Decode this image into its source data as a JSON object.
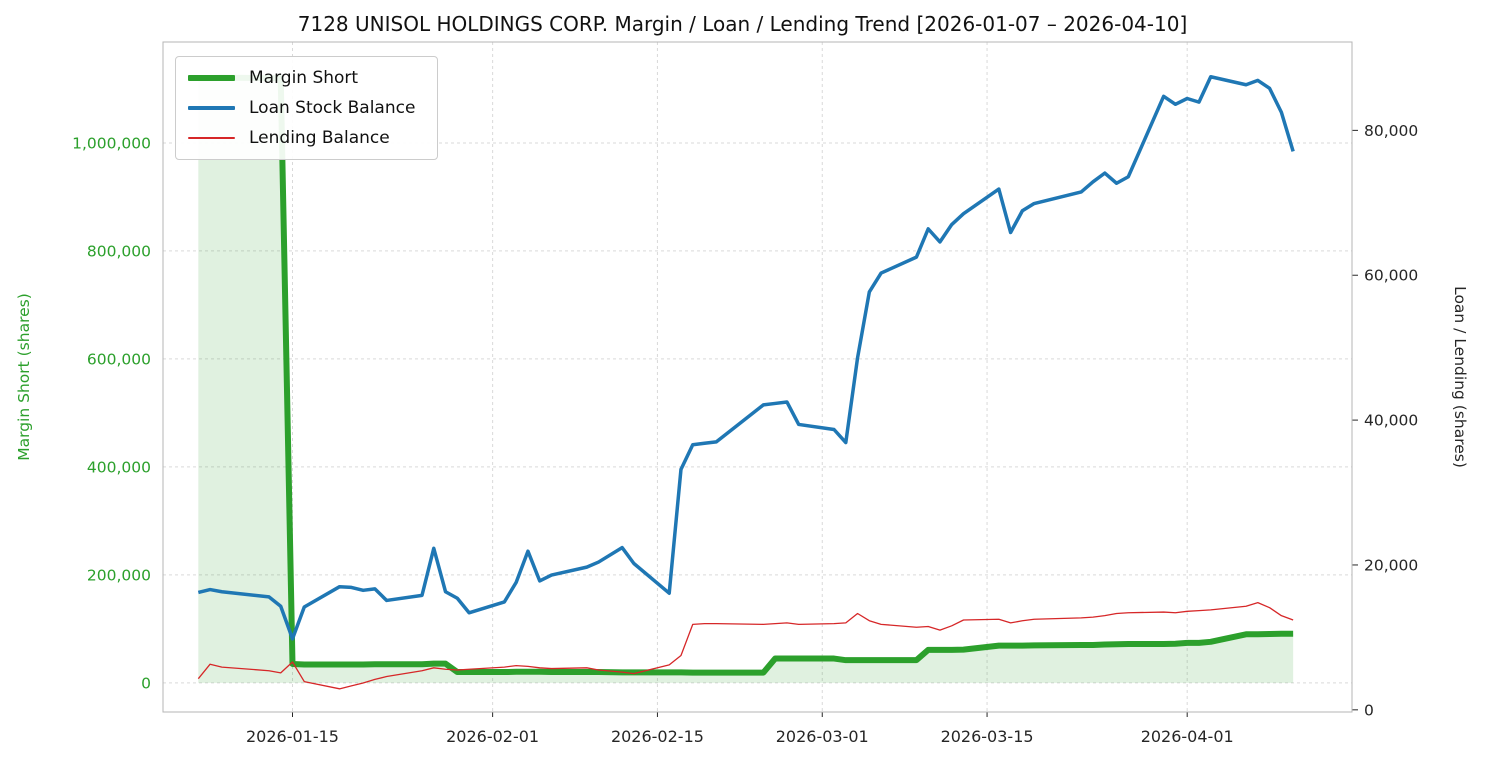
{
  "chart_data": {
    "type": "line",
    "title": "7128 UNISOL HOLDINGS CORP. Margin / Loan / Lending Trend [2026-01-07 – 2026-04-10]",
    "ylabel_left": "Margin Short (shares)",
    "ylabel_right": "Loan / Lending (shares)",
    "xlabel": "",
    "grid": true,
    "legend_position": "upper-left",
    "xlim": [
      "2026-01-04",
      "2026-04-15"
    ],
    "ylim_left": [
      -54000,
      1187000
    ],
    "ylim_right": [
      -300,
      92200
    ],
    "x_ticks": {
      "values": [
        "2026-01-15",
        "2026-02-01",
        "2026-02-15",
        "2026-03-01",
        "2026-03-15",
        "2026-04-01"
      ],
      "labels": [
        "2026-01-15",
        "2026-02-01",
        "2026-02-15",
        "2026-03-01",
        "2026-03-15",
        "2026-04-01"
      ]
    },
    "yticks_left": {
      "values": [
        0,
        200000,
        400000,
        600000,
        800000,
        1000000
      ],
      "labels": [
        "0",
        "200,000",
        "400,000",
        "600,000",
        "800,000",
        "1,000,000"
      ]
    },
    "yticks_right": {
      "values": [
        0,
        20000,
        40000,
        60000,
        80000
      ],
      "labels": [
        "0",
        "20,000",
        "40,000",
        "60,000",
        "80,000"
      ]
    },
    "style": {
      "grid_color": "#d9d9d9",
      "spine_color": "#b5b5b5",
      "tick_label_color": "#262626",
      "left_axis_color": "#2ca02c",
      "margin_fill_color": "rgba(44,160,44,0.15)"
    },
    "dates": [
      "2026-01-07",
      "2026-01-08",
      "2026-01-09",
      "2026-01-13",
      "2026-01-14",
      "2026-01-15",
      "2026-01-16",
      "2026-01-19",
      "2026-01-20",
      "2026-01-21",
      "2026-01-22",
      "2026-01-23",
      "2026-01-26",
      "2026-01-27",
      "2026-01-28",
      "2026-01-29",
      "2026-01-30",
      "2026-02-02",
      "2026-02-03",
      "2026-02-04",
      "2026-02-05",
      "2026-02-06",
      "2026-02-09",
      "2026-02-10",
      "2026-02-12",
      "2026-02-13",
      "2026-02-16",
      "2026-02-17",
      "2026-02-18",
      "2026-02-19",
      "2026-02-20",
      "2026-02-24",
      "2026-02-25",
      "2026-02-26",
      "2026-02-27",
      "2026-03-02",
      "2026-03-03",
      "2026-03-04",
      "2026-03-05",
      "2026-03-06",
      "2026-03-09",
      "2026-03-10",
      "2026-03-11",
      "2026-03-12",
      "2026-03-13",
      "2026-03-16",
      "2026-03-17",
      "2026-03-18",
      "2026-03-19",
      "2026-03-23",
      "2026-03-24",
      "2026-03-25",
      "2026-03-26",
      "2026-03-27",
      "2026-03-30",
      "2026-03-31",
      "2026-04-01",
      "2026-04-02",
      "2026-04-03",
      "2026-04-06",
      "2026-04-07",
      "2026-04-08",
      "2026-04-09",
      "2026-04-10"
    ],
    "series": [
      {
        "name": "Margin Short",
        "axis": "left",
        "color": "#2ca02c",
        "line_width": 6,
        "fill_to_zero": true,
        "values": [
          1120000,
          1120000,
          1121000,
          1120000,
          1120000,
          35000,
          34000,
          34000,
          34000,
          34000,
          34500,
          34500,
          34500,
          35500,
          35500,
          20000,
          20000,
          20000,
          20500,
          20500,
          20500,
          20000,
          20000,
          20000,
          19500,
          19500,
          19500,
          19500,
          19000,
          19000,
          19000,
          19000,
          45000,
          45000,
          45000,
          45000,
          42000,
          42000,
          42000,
          42000,
          42000,
          61000,
          61000,
          61000,
          61500,
          69000,
          69000,
          69000,
          69500,
          70000,
          70000,
          71000,
          71500,
          72000,
          72000,
          72500,
          74000,
          74000,
          76000,
          90000,
          90000,
          90500,
          91000,
          91000
        ]
      },
      {
        "name": "Loan Stock Balance",
        "axis": "right",
        "color": "#1f77b4",
        "line_width": 3.5,
        "fill_to_zero": false,
        "values": [
          16200,
          16600,
          16300,
          15600,
          14300,
          9800,
          14200,
          17000,
          16900,
          16500,
          16700,
          15100,
          15800,
          22300,
          16300,
          15400,
          13400,
          14900,
          17600,
          21900,
          17800,
          18600,
          19700,
          20400,
          22400,
          20200,
          16100,
          33200,
          36600,
          36800,
          37000,
          42100,
          42300,
          42500,
          39400,
          38700,
          36900,
          48600,
          57700,
          60300,
          62500,
          66400,
          64600,
          67000,
          68500,
          71900,
          65900,
          68900,
          69900,
          71500,
          72900,
          74100,
          72700,
          73600,
          84700,
          83600,
          84400,
          83900,
          87400,
          86300,
          86900,
          85800,
          82500,
          77100
        ]
      },
      {
        "name": "Lending Balance",
        "axis": "right",
        "color": "#d62728",
        "line_width": 1.3,
        "fill_to_zero": false,
        "values": [
          4300,
          6300,
          5900,
          5400,
          5100,
          6600,
          3900,
          2900,
          3300,
          3700,
          4200,
          4600,
          5400,
          5800,
          5600,
          5500,
          5600,
          5900,
          6100,
          6000,
          5800,
          5700,
          5800,
          5500,
          5200,
          5000,
          6200,
          7500,
          11800,
          11900,
          11900,
          11800,
          11900,
          12000,
          11800,
          11900,
          12000,
          13300,
          12300,
          11800,
          11400,
          11500,
          11000,
          11600,
          12400,
          12500,
          12000,
          12300,
          12500,
          12700,
          12800,
          13000,
          13300,
          13400,
          13500,
          13400,
          13600,
          13700,
          13800,
          14300,
          14800,
          14100,
          13000,
          12400
        ]
      }
    ]
  }
}
